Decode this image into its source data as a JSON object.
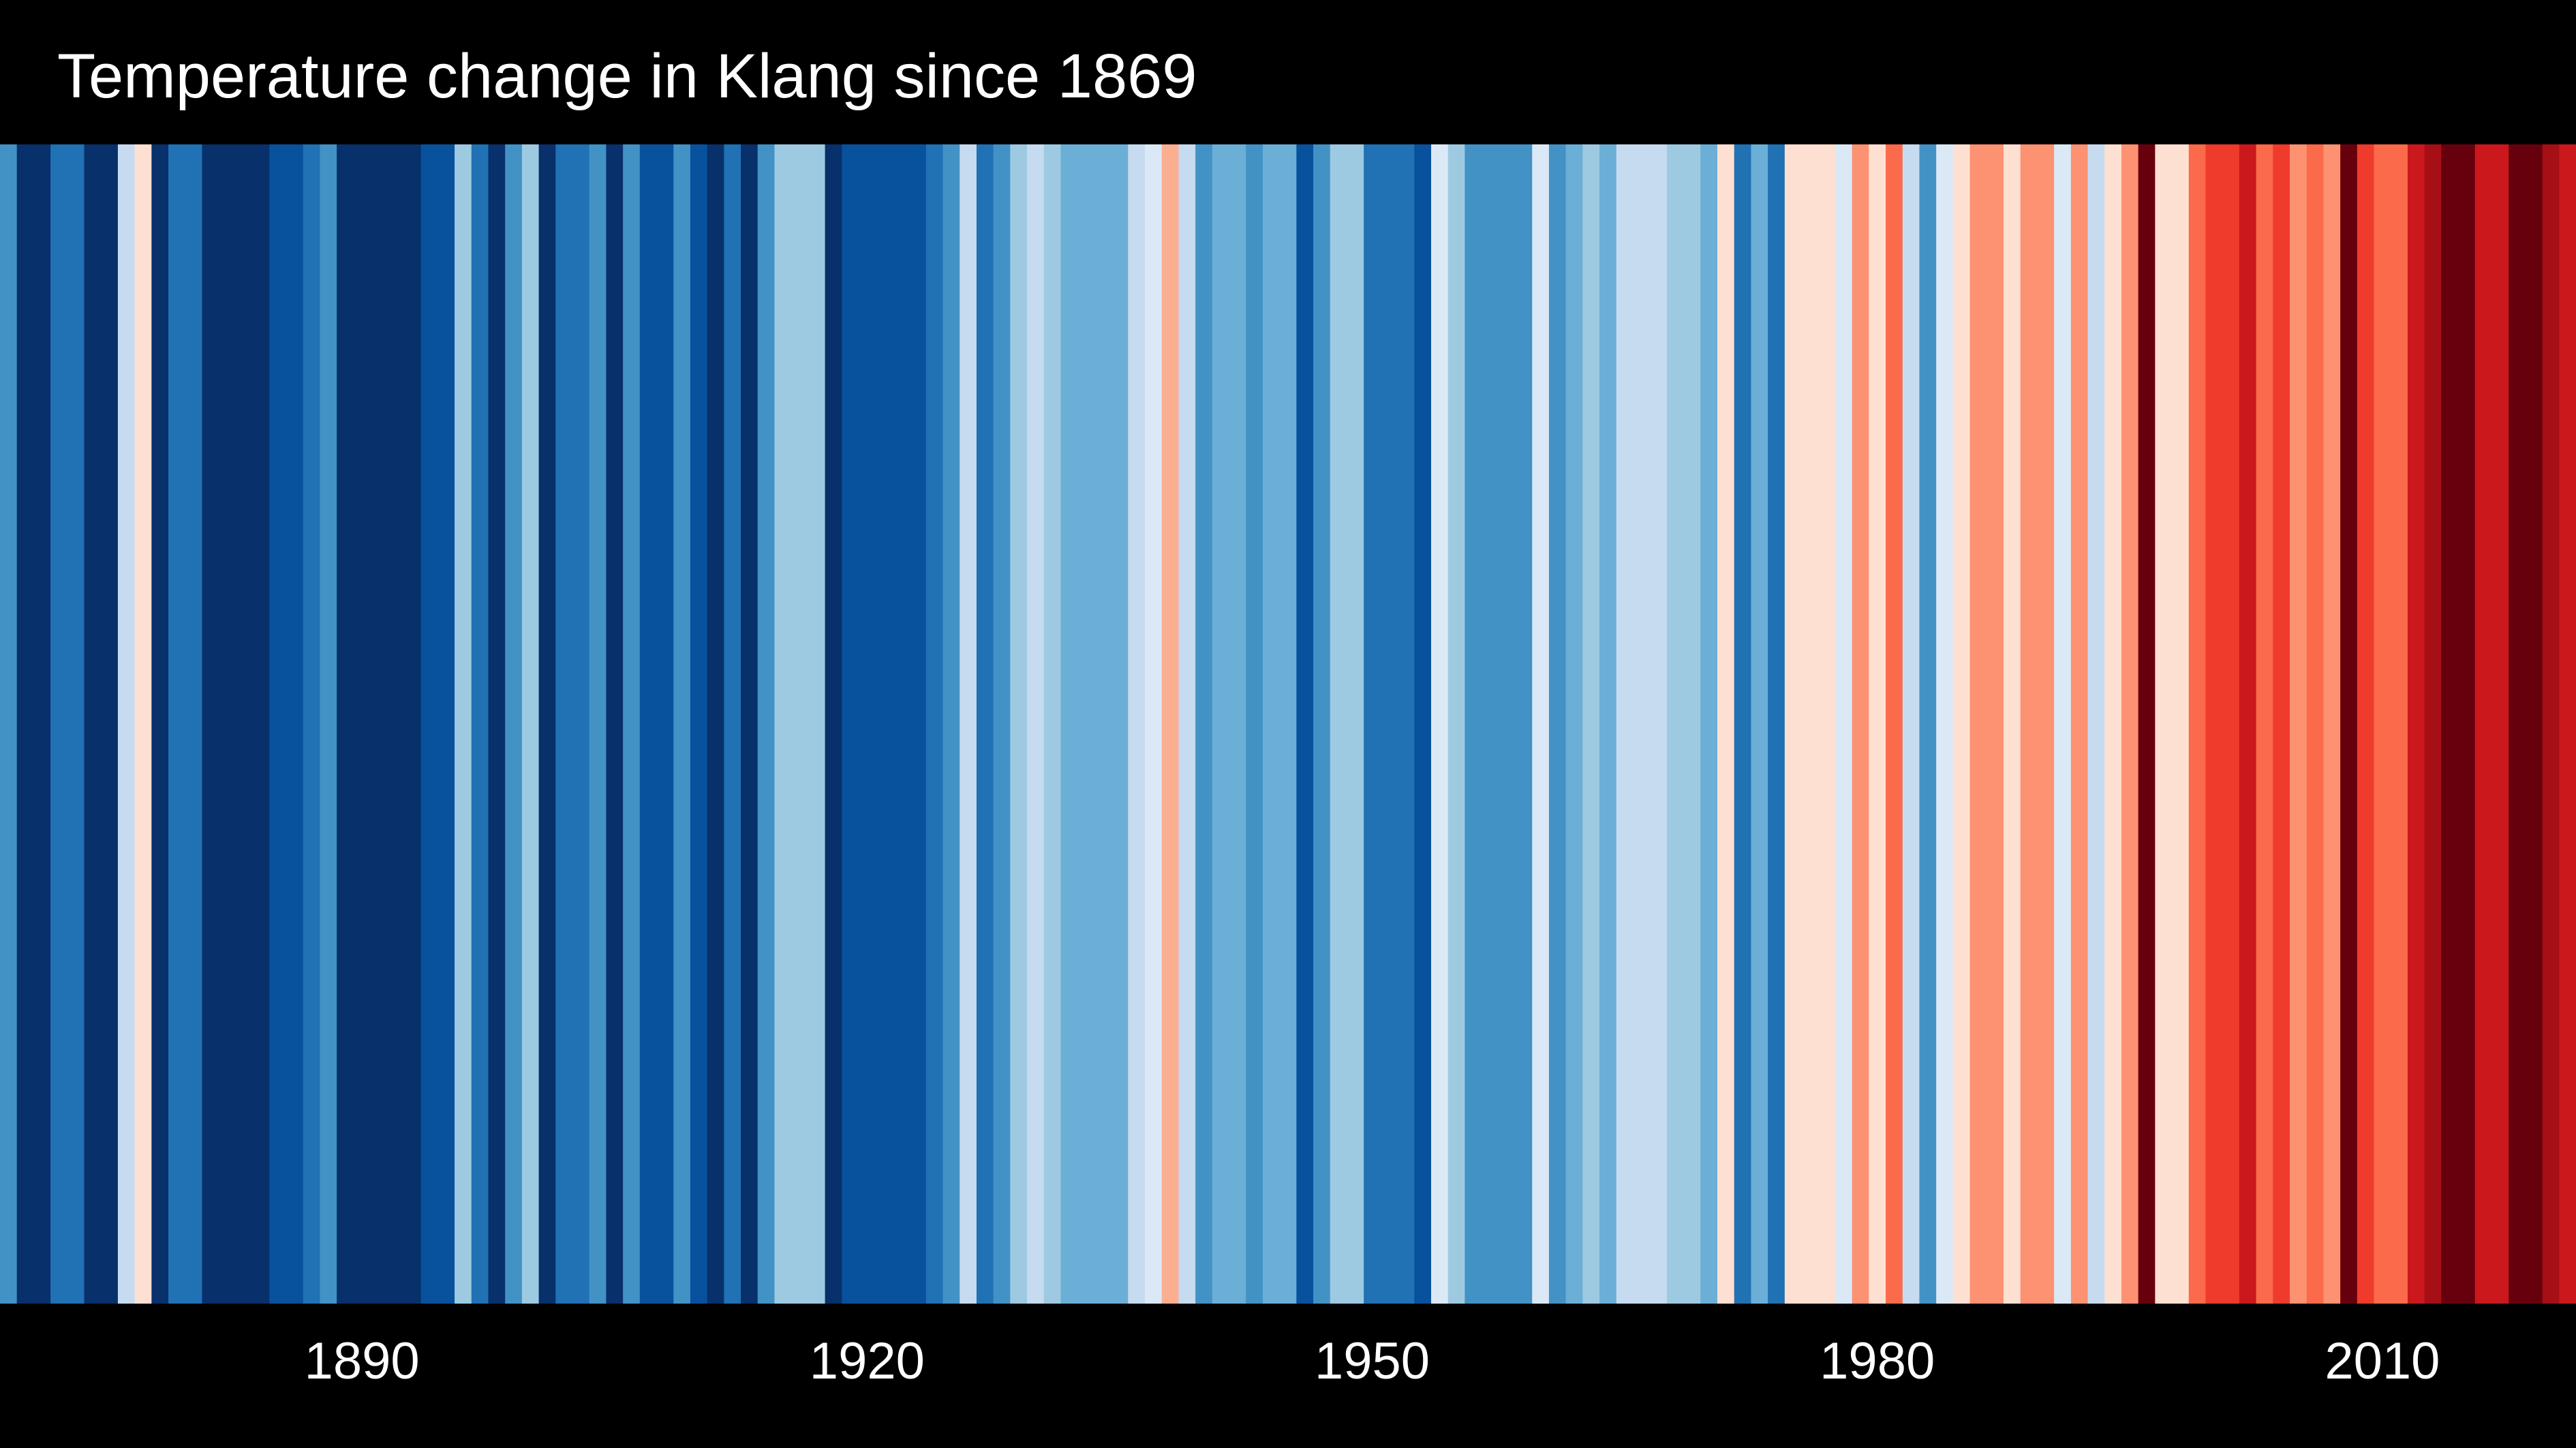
{
  "chart_data": {
    "type": "heatmap",
    "title": "Temperature change in Klang since 1869",
    "x_start_year": 1869,
    "x_tick_labels": [
      "1890",
      "1920",
      "1950",
      "1980",
      "2010"
    ],
    "x_ticks": [
      1890,
      1920,
      1950,
      1980,
      2010
    ],
    "xlim": [
      1869,
      2022
    ],
    "stripe_colors": [
      "#4292c6",
      "#08306b",
      "#08306b",
      "#2171b5",
      "#2171b5",
      "#08306b",
      "#08306b",
      "#c6dbef",
      "#fee0d2",
      "#08306b",
      "#2171b5",
      "#2171b5",
      "#08306b",
      "#08306b",
      "#08306b",
      "#08306b",
      "#08519c",
      "#08519c",
      "#2171b5",
      "#4292c6",
      "#08306b",
      "#08306b",
      "#08306b",
      "#08306b",
      "#08306b",
      "#08519c",
      "#08519c",
      "#9ecae1",
      "#2171b5",
      "#08306b",
      "#4292c6",
      "#9ecae1",
      "#08306b",
      "#2171b5",
      "#2171b5",
      "#4292c6",
      "#08306b",
      "#4292c6",
      "#08519c",
      "#08519c",
      "#4292c6",
      "#08519c",
      "#08306b",
      "#2171b5",
      "#08306b",
      "#4292c6",
      "#9ecae1",
      "#9ecae1",
      "#9ecae1",
      "#08306b",
      "#08519c",
      "#08519c",
      "#08519c",
      "#08519c",
      "#08519c",
      "#2171b5",
      "#4292c6",
      "#c6dbef",
      "#2171b5",
      "#4292c6",
      "#9ecae1",
      "#c6dbef",
      "#9ecae1",
      "#6baed6",
      "#6baed6",
      "#6baed6",
      "#6baed6",
      "#c6dbef",
      "#dbe9f6",
      "#fcae91",
      "#c6dbef",
      "#4292c6",
      "#6baed6",
      "#6baed6",
      "#4292c6",
      "#6baed6",
      "#6baed6",
      "#08519c",
      "#4292c6",
      "#9ecae1",
      "#9ecae1",
      "#2171b5",
      "#2171b5",
      "#2171b5",
      "#08519c",
      "#dbe9f6",
      "#9ecae1",
      "#4292c6",
      "#4292c6",
      "#4292c6",
      "#4292c6",
      "#dbe9f6",
      "#4292c6",
      "#6baed6",
      "#9ecae1",
      "#6baed6",
      "#c6dbef",
      "#c6dbef",
      "#c6dbef",
      "#9ecae1",
      "#9ecae1",
      "#6baed6",
      "#fee0d2",
      "#2171b5",
      "#6baed6",
      "#2171b5",
      "#fee0d2",
      "#fee0d2",
      "#fee0d2",
      "#dbe9f6",
      "#fc9272",
      "#fee0d2",
      "#fb6a4a",
      "#c6dbef",
      "#4292c6",
      "#dbe9f6",
      "#fee0d2",
      "#fc9272",
      "#fc9272",
      "#fee0d2",
      "#fc9272",
      "#fc9272",
      "#dbe9f6",
      "#fc9272",
      "#c6dbef",
      "#fee0d2",
      "#fc9272",
      "#67000d",
      "#fee0d2",
      "#fee0d2",
      "#fb6a4a",
      "#ef3b2c",
      "#ef3b2c",
      "#cb181d",
      "#fb6a4a",
      "#ef3b2c",
      "#fc9272",
      "#fb6a4a",
      "#fc9272",
      "#67000d",
      "#ef3b2c",
      "#fb6a4a",
      "#fb6a4a",
      "#cb181d",
      "#a50f15",
      "#67000d",
      "#67000d",
      "#cb181d",
      "#cb181d",
      "#67000d",
      "#67000d",
      "#a50f15",
      "#cb181d"
    ]
  }
}
